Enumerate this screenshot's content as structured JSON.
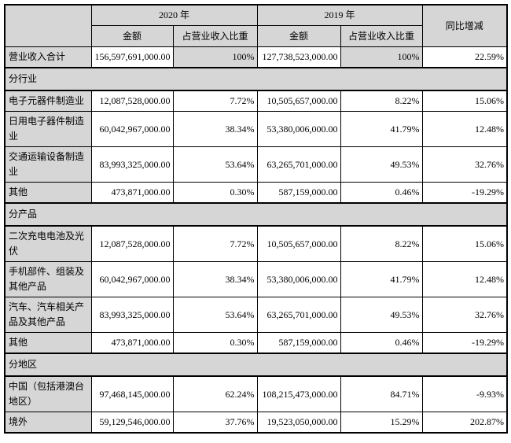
{
  "colors": {
    "shade": "#d6d6d6",
    "border": "#000000",
    "text": "#000000",
    "background": "#ffffff"
  },
  "table": {
    "header": {
      "corner": "",
      "y2020": "2020 年",
      "y2019": "2019 年",
      "yoy": "同比增减",
      "amount": "金额",
      "share": "占营业收入比重"
    },
    "rows": [
      {
        "type": "total",
        "label": "营业收入合计",
        "a2020": "156,597,691,000.00",
        "s2020": "100%",
        "a2019": "127,738,523,000.00",
        "s2019": "100%",
        "yoy": "22.59%"
      },
      {
        "type": "section",
        "label": "分行业"
      },
      {
        "type": "data",
        "label": "电子元器件制造业",
        "a2020": "12,087,528,000.00",
        "s2020": "7.72%",
        "a2019": "10,505,657,000.00",
        "s2019": "8.22%",
        "yoy": "15.06%"
      },
      {
        "type": "data",
        "label": "日用电子器件制造业",
        "a2020": "60,042,967,000.00",
        "s2020": "38.34%",
        "a2019": "53,380,006,000.00",
        "s2019": "41.79%",
        "yoy": "12.48%"
      },
      {
        "type": "data",
        "label": "交通运输设备制造业",
        "a2020": "83,993,325,000.00",
        "s2020": "53.64%",
        "a2019": "63,265,701,000.00",
        "s2019": "49.53%",
        "yoy": "32.76%"
      },
      {
        "type": "data",
        "label": "其他",
        "a2020": "473,871,000.00",
        "s2020": "0.30%",
        "a2019": "587,159,000.00",
        "s2019": "0.46%",
        "yoy": "-19.29%"
      },
      {
        "type": "section",
        "label": "分产品"
      },
      {
        "type": "data",
        "label": "二次充电电池及光伏",
        "a2020": "12,087,528,000.00",
        "s2020": "7.72%",
        "a2019": "10,505,657,000.00",
        "s2019": "8.22%",
        "yoy": "15.06%"
      },
      {
        "type": "data",
        "label": "手机部件、组装及其他产品",
        "a2020": "60,042,967,000.00",
        "s2020": "38.34%",
        "a2019": "53,380,006,000.00",
        "s2019": "41.79%",
        "yoy": "12.48%"
      },
      {
        "type": "data",
        "label": "汽车、汽车相关产品及其他产品",
        "a2020": "83,993,325,000.00",
        "s2020": "53.64%",
        "a2019": "63,265,701,000.00",
        "s2019": "49.53%",
        "yoy": "32.76%"
      },
      {
        "type": "data",
        "label": "其他",
        "a2020": "473,871,000.00",
        "s2020": "0.30%",
        "a2019": "587,159,000.00",
        "s2019": "0.46%",
        "yoy": "-19.29%"
      },
      {
        "type": "section",
        "label": "分地区"
      },
      {
        "type": "data",
        "label": "中国（包括港澳台地区）",
        "a2020": "97,468,145,000.00",
        "s2020": "62.24%",
        "a2019": "108,215,473,000.00",
        "s2019": "84.71%",
        "yoy": "-9.93%"
      },
      {
        "type": "data",
        "label": "境外",
        "a2020": "59,129,546,000.00",
        "s2020": "37.76%",
        "a2019": "19,523,050,000.00",
        "s2019": "15.29%",
        "yoy": "202.87%"
      }
    ]
  }
}
